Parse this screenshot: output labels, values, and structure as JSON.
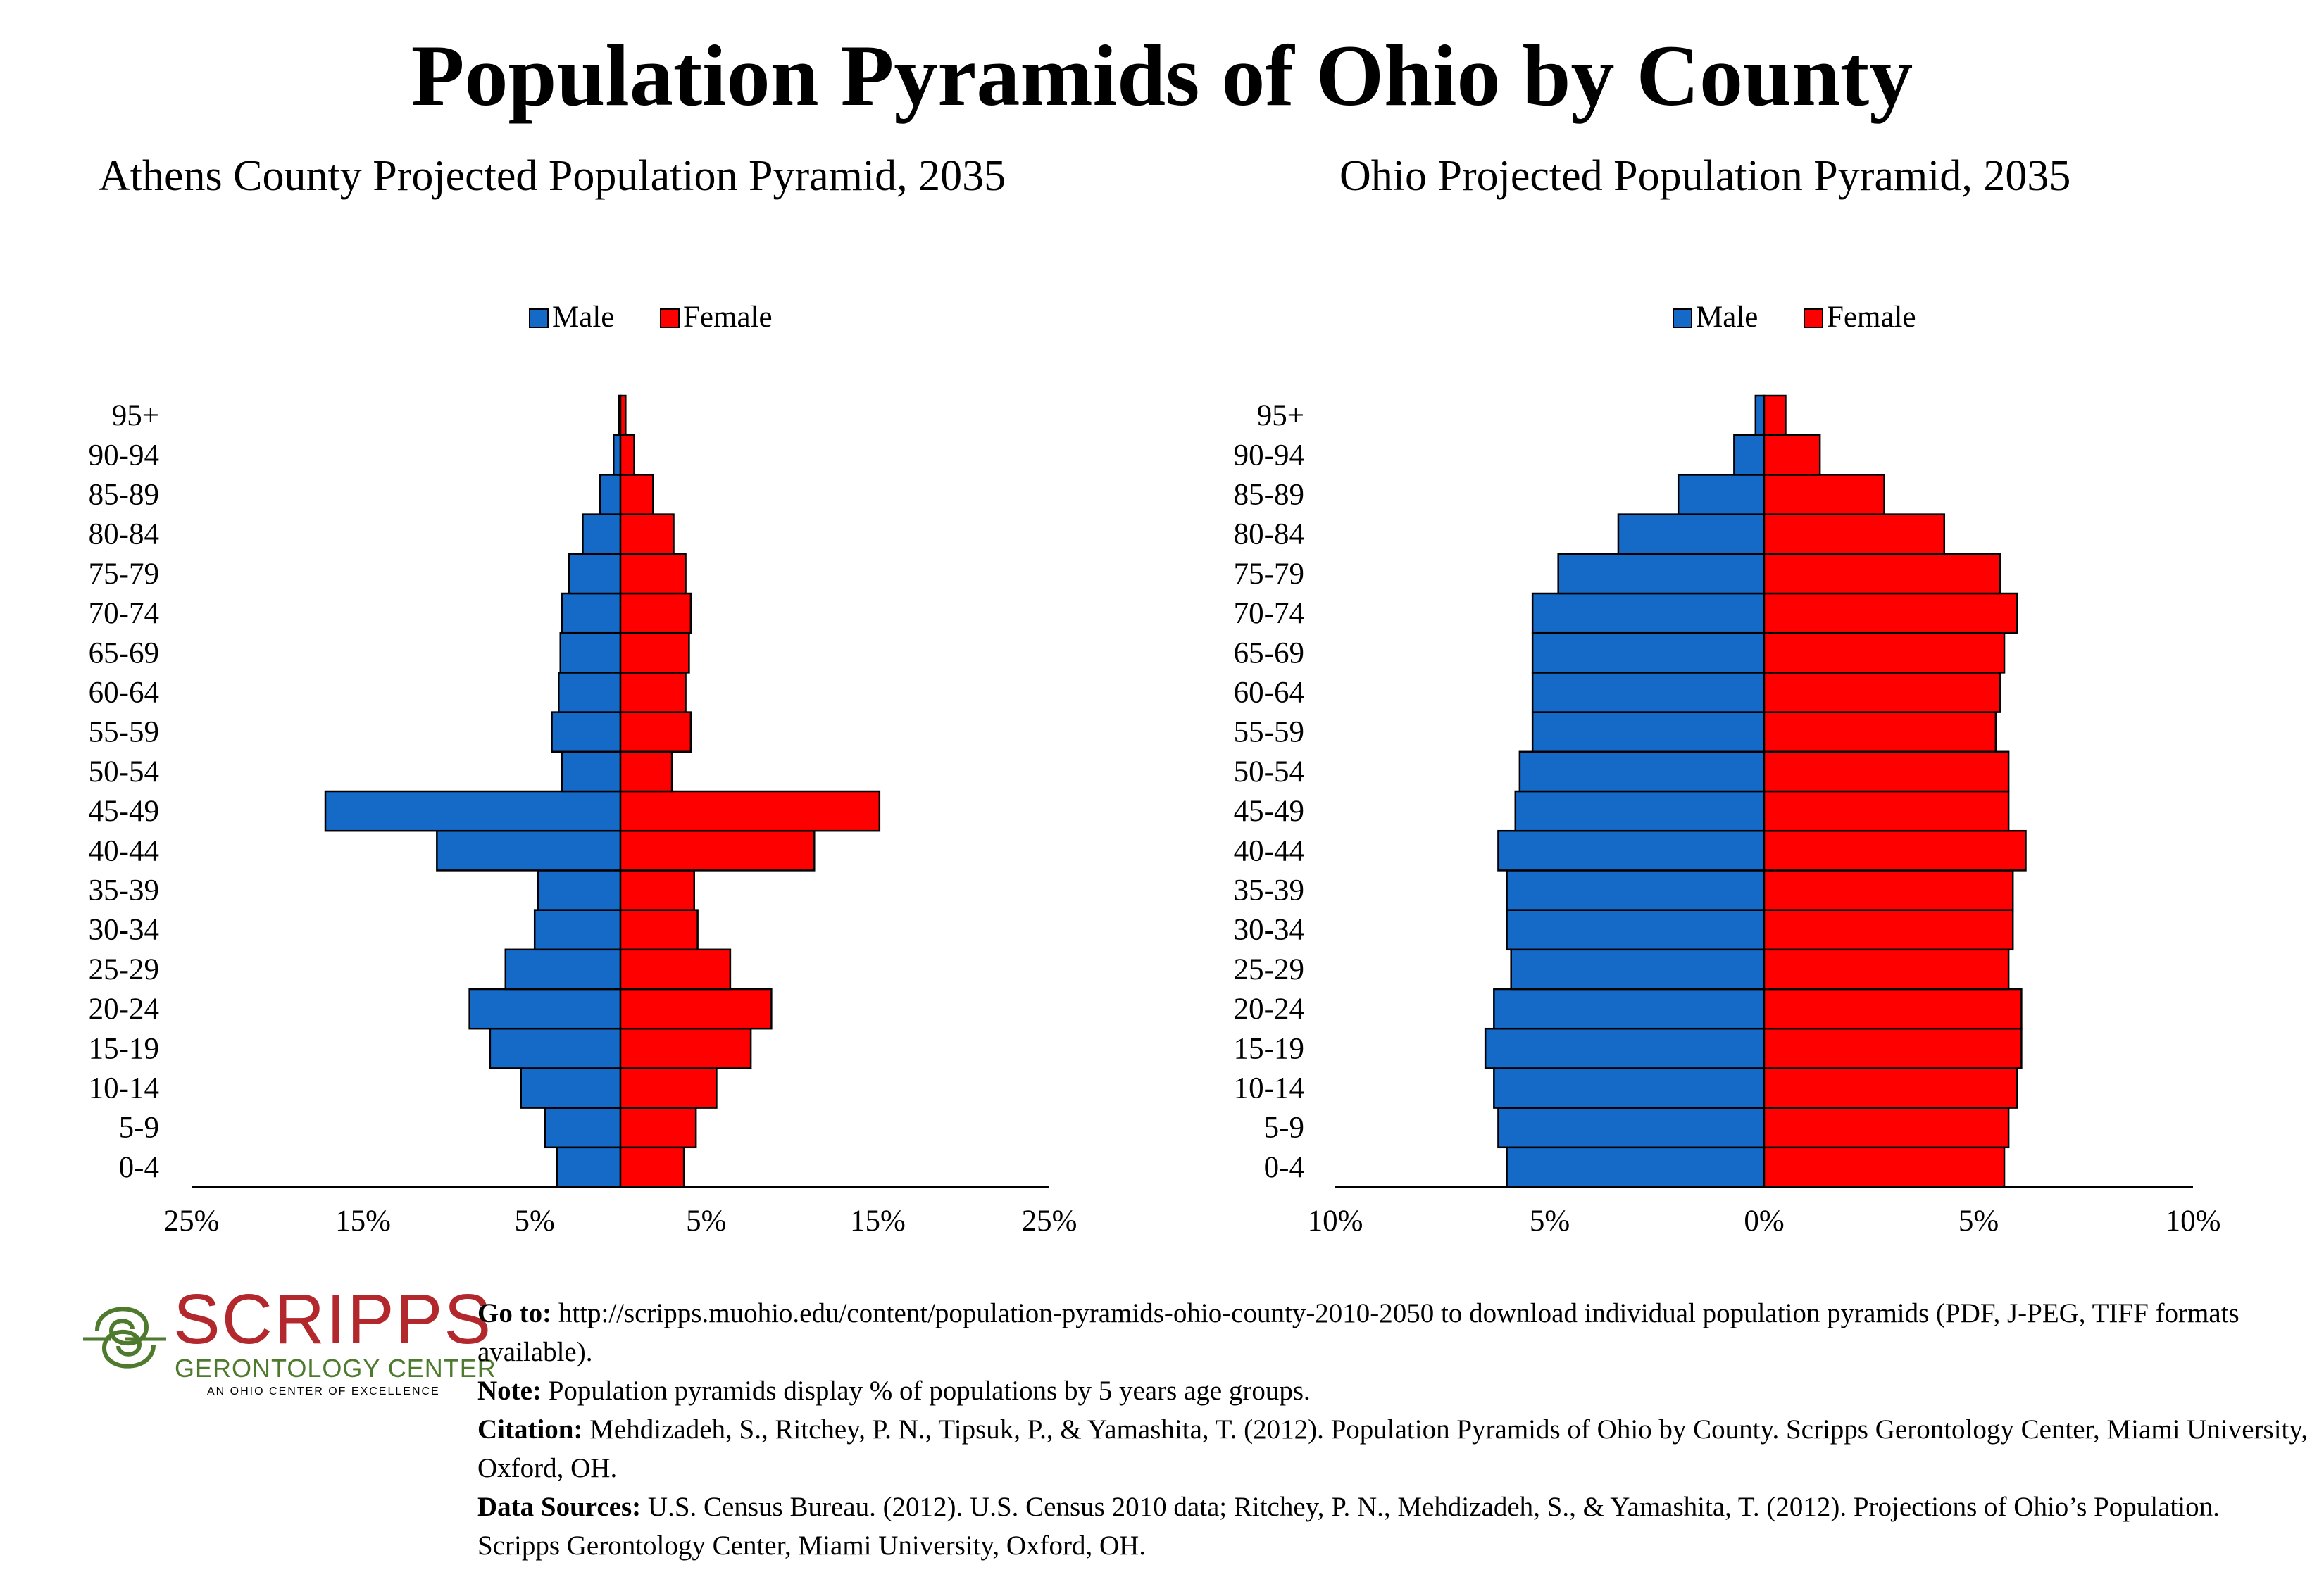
{
  "main_title": "Population Pyramids of Ohio by County",
  "colors": {
    "male": "#1569c7",
    "female": "#ff0000",
    "outline": "#000000"
  },
  "chart_data": [
    {
      "type": "bar",
      "subtype": "population-pyramid",
      "title": "Athens County Projected Population Pyramid, 2035",
      "categories": [
        "0-4",
        "5-9",
        "10-14",
        "15-19",
        "20-24",
        "25-29",
        "30-34",
        "35-39",
        "40-44",
        "45-49",
        "50-54",
        "55-59",
        "60-64",
        "65-69",
        "70-74",
        "75-79",
        "80-84",
        "85-89",
        "90-94",
        "95+"
      ],
      "series": [
        {
          "name": "Male",
          "values": [
            3.7,
            4.4,
            5.8,
            7.6,
            8.8,
            6.7,
            5.0,
            4.8,
            10.7,
            17.2,
            3.4,
            4.0,
            3.6,
            3.5,
            3.4,
            3.0,
            2.2,
            1.2,
            0.4,
            0.1
          ]
        },
        {
          "name": "Female",
          "values": [
            3.7,
            4.4,
            5.6,
            7.6,
            8.8,
            6.4,
            4.5,
            4.3,
            11.3,
            15.1,
            3.0,
            4.1,
            3.8,
            4.0,
            4.1,
            3.8,
            3.1,
            1.9,
            0.8,
            0.3
          ]
        }
      ],
      "x_ticks": [
        "25%",
        "15%",
        "5%",
        "5%",
        "15%",
        "25%"
      ],
      "xlim": [
        -25,
        25
      ],
      "legend": "top-center"
    },
    {
      "type": "bar",
      "subtype": "population-pyramid",
      "title": "Ohio Projected Population Pyramid, 2035",
      "categories": [
        "0-4",
        "5-9",
        "10-14",
        "15-19",
        "20-24",
        "25-29",
        "30-34",
        "35-39",
        "40-44",
        "45-49",
        "50-54",
        "55-59",
        "60-64",
        "65-69",
        "70-74",
        "75-79",
        "80-84",
        "85-89",
        "90-94",
        "95+"
      ],
      "series": [
        {
          "name": "Male",
          "values": [
            6.0,
            6.2,
            6.3,
            6.5,
            6.3,
            5.9,
            6.0,
            6.0,
            6.2,
            5.8,
            5.7,
            5.4,
            5.4,
            5.4,
            5.4,
            4.8,
            3.4,
            2.0,
            0.7,
            0.2
          ]
        },
        {
          "name": "Female",
          "values": [
            5.6,
            5.7,
            5.9,
            6.0,
            6.0,
            5.7,
            5.8,
            5.8,
            6.1,
            5.7,
            5.7,
            5.4,
            5.5,
            5.6,
            5.9,
            5.5,
            4.2,
            2.8,
            1.3,
            0.5
          ]
        }
      ],
      "x_ticks": [
        "10%",
        "5%",
        "0%",
        "5%",
        "10%"
      ],
      "xlim": [
        -10,
        10
      ],
      "legend": "top-center"
    }
  ],
  "logo": {
    "name": "SCRIPPS",
    "subtitle": "GERONTOLOGY CENTER",
    "tagline": "AN OHIO CENTER OF EXCELLENCE"
  },
  "notes": {
    "goto_label": "Go to:",
    "goto_text": " http://scripps.muohio.edu/content/population-pyramids-ohio-county-2010-2050 to download individual population pyramids (PDF, J-PEG, TIFF formats available).",
    "note_label": "Note:",
    "note_text": " Population pyramids display % of populations by 5 years age groups.",
    "citation_label": "Citation:",
    "citation_text": " Mehdizadeh, S., Ritchey, P. N., Tipsuk, P., & Yamashita, T. (2012). Population Pyramids of Ohio by County. Scripps Gerontology Center, Miami University, Oxford, OH.",
    "sources_label": "Data Sources:",
    "sources_text": " U.S. Census Bureau. (2012). U.S. Census 2010 data; Ritchey, P. N., Mehdizadeh, S., & Yamashita, T. (2012). Projections of Ohio’s Population. Scripps Gerontology Center, Miami University, Oxford, OH."
  }
}
